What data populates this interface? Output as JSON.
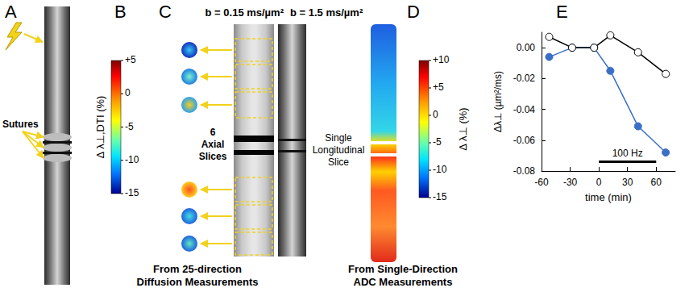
{
  "figure": {
    "panels": [
      {
        "letter": "A",
        "annotations": [
          "Sutures"
        ]
      },
      {
        "letter": "B",
        "colorbar": {
          "title": "Δ λ⊥,DTI (%)",
          "range": [
            -15,
            5
          ],
          "ticks": [
            {
              "value": 5,
              "label": "+5"
            },
            0,
            -5,
            -10,
            -15
          ]
        },
        "annotations": [
          "6 Axial Slices"
        ],
        "caption": "From 25-direction Diffusion Measurements"
      },
      {
        "letter": "C",
        "image_labels": [
          "b = 0.15 ms/µm²",
          "b = 1.5 ms/µm²"
        ]
      },
      {
        "letter": "D",
        "colorbar": {
          "title": "Δ λ⊥ (%)",
          "range": [
            -15,
            10
          ],
          "ticks": [
            {
              "value": 10,
              "label": "+10"
            },
            {
              "value": 5,
              "label": "+5"
            },
            0,
            -5,
            -10,
            -15
          ]
        },
        "annotations": [
          "Single Longitudinal Slice"
        ],
        "caption": "From Single-Direction ADC Measurements"
      },
      {
        "letter": "E"
      }
    ]
  },
  "chart_data": {
    "type": "line",
    "x_label": "time (min)",
    "y_label": "Δλ⊥ (µm²/ms)",
    "x": [
      -52,
      -28,
      -5,
      12,
      41,
      70
    ],
    "series": [
      {
        "color": "#ffffff",
        "marker": "circle",
        "line_style": "solid",
        "values": [
          0.007,
          0.0,
          0.0,
          0.008,
          -0.003,
          -0.017
        ]
      },
      {
        "color": "#3b6fc6",
        "marker": "circle",
        "line_style": "solid",
        "values": [
          -0.006,
          0.0,
          0.0,
          -0.015,
          -0.051,
          -0.068
        ]
      }
    ],
    "xlim": [
      -60,
      80
    ],
    "xticks": [
      -60,
      -30,
      0,
      30,
      60
    ],
    "ylim": [
      -0.08,
      0.01
    ],
    "yticks": [
      {
        "value": 0,
        "label": "0.00"
      },
      {
        "value": -0.02,
        "label": "-0.02"
      },
      {
        "value": -0.04,
        "label": "-0.04"
      },
      {
        "value": -0.06,
        "label": "-0.06"
      },
      {
        "value": -0.08,
        "label": "-0.08"
      }
    ],
    "annotations": [
      {
        "text": "100 Hz",
        "x": [
          0,
          60
        ],
        "y": -0.074
      }
    ],
    "grid": false
  }
}
